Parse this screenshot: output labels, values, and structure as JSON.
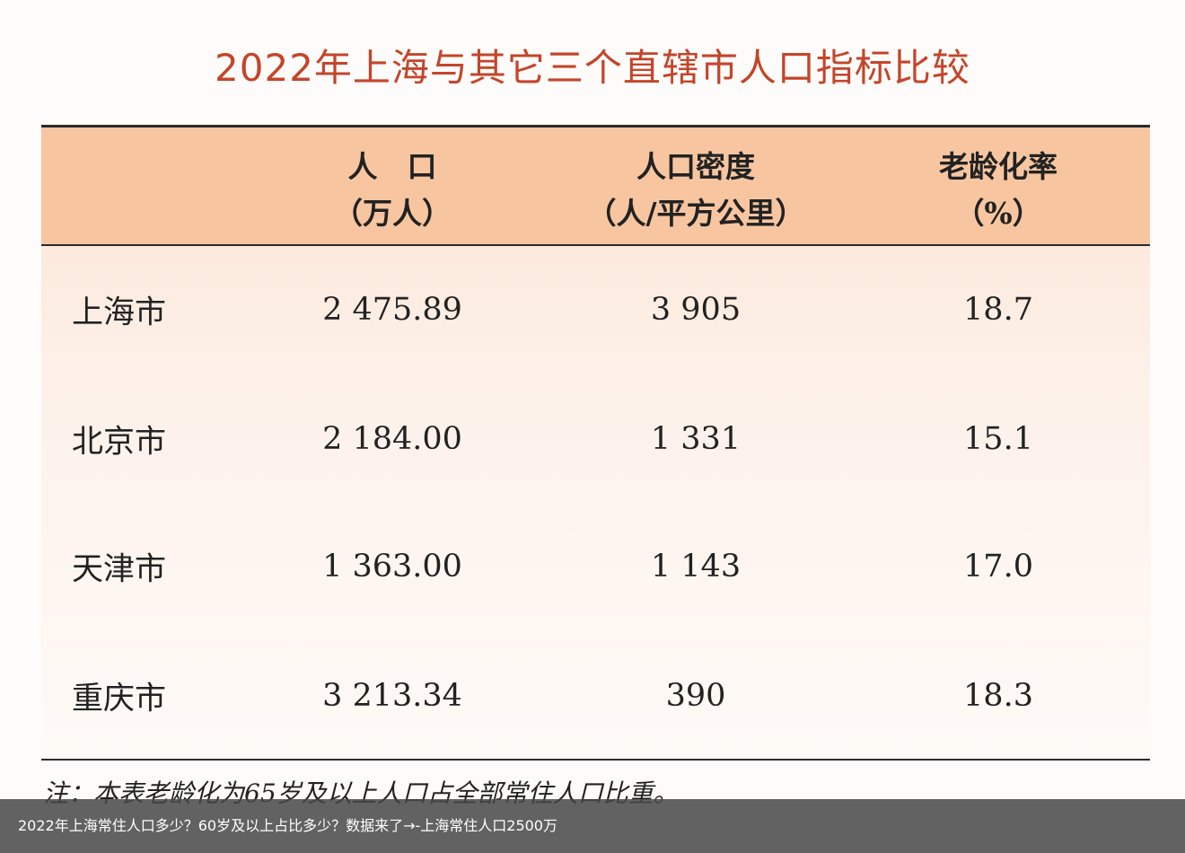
{
  "title": "2022年上海与其它三个直辖市人口指标比较",
  "table": {
    "header": [
      [
        "人　口",
        "（万人）"
      ],
      [
        "人口密度",
        "（人/平方公里）"
      ],
      [
        "老龄化率",
        "（%）"
      ]
    ],
    "rows": [
      [
        "上海市",
        "2 475.89",
        "3 905",
        "18.7"
      ],
      [
        "北京市",
        "2 184.00",
        "1 331",
        "15.1"
      ],
      [
        "天津市",
        "1 363.00",
        "1 143",
        "17.0"
      ],
      [
        "重庆市",
        "3 213.34",
        "390",
        "18.3"
      ]
    ]
  },
  "note": "注：本表老龄化为65岁及以上人口占全部常住人口比重。",
  "caption": "2022年上海常住人口多少？60岁及以上占比多少？数据来了→-上海常住人口2500万"
}
